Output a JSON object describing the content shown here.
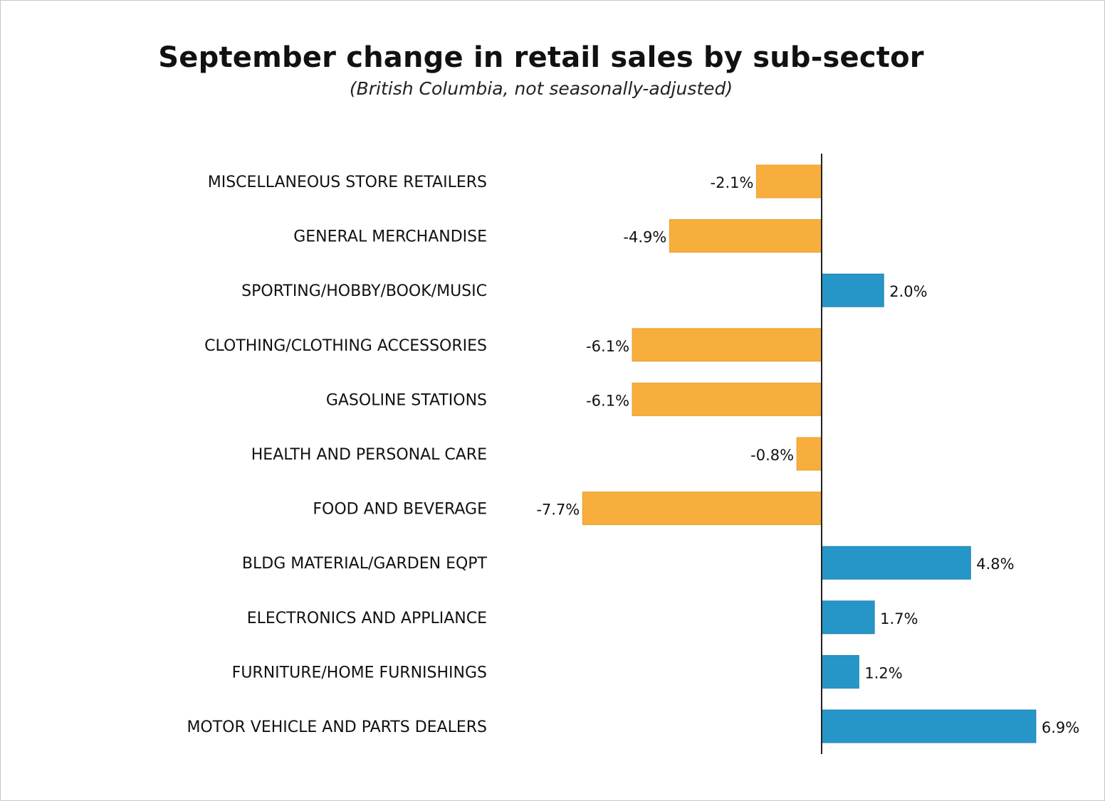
{
  "chart_data": {
    "type": "bar",
    "orientation": "horizontal",
    "title": "September change in retail sales by sub-sector",
    "subtitle": "(British Columbia, not seasonally-adjusted)",
    "categories": [
      "MISCELLANEOUS STORE RETAILERS",
      "GENERAL MERCHANDISE",
      "SPORTING/HOBBY/BOOK/MUSIC",
      "CLOTHING/CLOTHING ACCESSORIES",
      "GASOLINE STATIONS",
      "HEALTH AND PERSONAL CARE",
      "FOOD AND BEVERAGE",
      "BLDG MATERIAL/GARDEN EQPT",
      "ELECTRONICS AND APPLIANCE",
      "FURNITURE/HOME FURNISHINGS",
      "MOTOR VEHICLE AND PARTS DEALERS"
    ],
    "values": [
      -2.1,
      -4.9,
      2.0,
      -6.1,
      -6.1,
      -0.8,
      -7.7,
      4.8,
      1.7,
      1.2,
      6.9
    ],
    "labels": [
      "-2.1%",
      "-4.9%",
      "2.0%",
      "-6.1%",
      "-6.1%",
      "-0.8%",
      "-7.7%",
      "4.8%",
      "1.7%",
      "1.2%",
      "6.9%"
    ],
    "xlim": [
      -7.7,
      6.9
    ],
    "grid": false,
    "legend": "none",
    "colors": {
      "negative": "#F7AE3D",
      "positive": "#2696C8",
      "axis": "#222222"
    }
  }
}
